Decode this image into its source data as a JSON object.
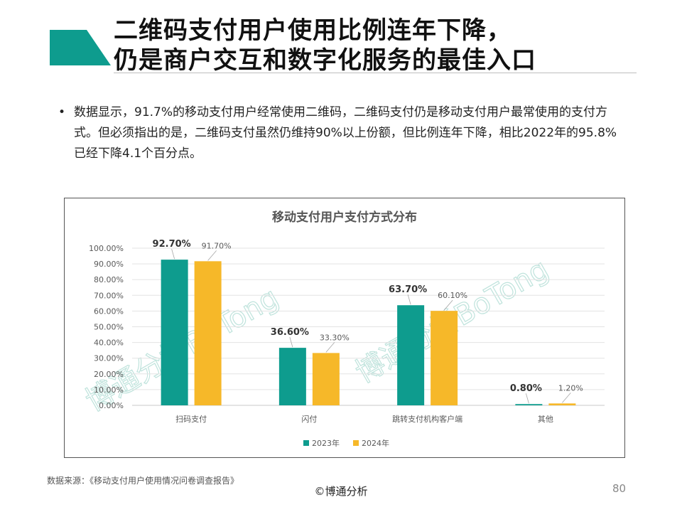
{
  "header": {
    "title_line1": "二维码支付用户使用比例连年下降，",
    "title_line2": "仍是商户交互和数字化服务的最佳入口"
  },
  "body": {
    "bullet_symbol": "•",
    "bullet_text": "数据显示，91.7%的移动支付用户经常使用二维码，二维码支付仍是移动支付用户最常使用的支付方式。但必须指出的是，二维码支付虽然仍维持90%以上份额，但比例连年下降，相比2022年的95.8%已经下降4.1个百分点。"
  },
  "chart_data": {
    "type": "bar",
    "title": "移动支付用户支付方式分布",
    "categories": [
      "扫码支付",
      "闪付",
      "跳转支付机构客户端",
      "其他"
    ],
    "series": [
      {
        "name": "2023年",
        "values": [
          92.7,
          36.6,
          63.7,
          0.8
        ],
        "labels": [
          "92.70%",
          "36.60%",
          "63.70%",
          "0.80%"
        ]
      },
      {
        "name": "2024年",
        "values": [
          91.7,
          33.3,
          60.1,
          1.2
        ],
        "labels": [
          "91.70%",
          "33.30%",
          "60.10%",
          "1.20%"
        ]
      }
    ],
    "yticks": [
      "0.00%",
      "10.00%",
      "20.00%",
      "30.00%",
      "40.00%",
      "50.00%",
      "60.00%",
      "70.00%",
      "80.00%",
      "90.00%",
      "100.00%"
    ],
    "ylim": [
      0,
      100
    ],
    "grid": true,
    "legend_position": "bottom",
    "colors": [
      "#0e9c8e",
      "#f6b829"
    ],
    "watermark": "博通分析BoTong"
  },
  "footer": {
    "source": "数据来源：《移动支付用户使用情况问卷调查报告》",
    "copyright": "©博通分析",
    "page_number": "80"
  }
}
